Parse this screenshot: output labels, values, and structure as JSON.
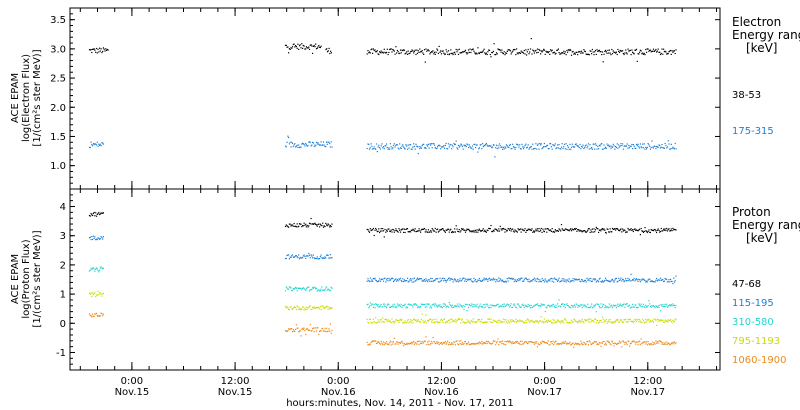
{
  "chart_data": [
    {
      "type": "scatter",
      "panel": "electron",
      "ylabel_lines": [
        "ACE EPAM",
        "log(Electron Flux)",
        "[1/(cm²s ster MeV)]"
      ],
      "ylim": [
        0.6,
        3.7
      ],
      "yticks": [
        "1.0",
        "1.5",
        "2.0",
        "2.5",
        "3.0",
        "3.5"
      ],
      "ytick_values": [
        1.0,
        1.5,
        2.0,
        2.5,
        3.0,
        3.5
      ],
      "legend_title_lines": [
        "Electron",
        "Energy ranges",
        "[keV]"
      ],
      "series": [
        {
          "name": "38-53",
          "color": "#000000",
          "segments": [
            [
              -5.0,
              -2.8,
              2.98
            ],
            [
              17.8,
              22.0,
              3.05
            ],
            [
              22.5,
              23.2,
              2.98
            ],
            [
              27.3,
              63.3,
              2.96
            ]
          ]
        },
        {
          "name": "175-315",
          "color": "#1e7fd6",
          "segments": [
            [
              -5.0,
              -3.3,
              1.37
            ],
            [
              17.8,
              23.2,
              1.37
            ],
            [
              27.3,
              63.3,
              1.34
            ]
          ]
        }
      ]
    },
    {
      "type": "scatter",
      "panel": "proton",
      "ylabel_lines": [
        "ACE EPAM",
        "log(Proton Flux)",
        "[1/(cm²s ster MeV)]"
      ],
      "ylim": [
        -1.6,
        4.6
      ],
      "yticks": [
        "-1",
        "0",
        "1",
        "2",
        "3",
        "4"
      ],
      "ytick_values": [
        -1,
        0,
        1,
        2,
        3,
        4
      ],
      "legend_title_lines": [
        "Proton",
        "Energy ranges",
        "[keV]"
      ],
      "series": [
        {
          "name": "47-68",
          "color": "#000000",
          "segments": [
            [
              -5.0,
              -3.3,
              3.76
            ],
            [
              17.8,
              23.2,
              3.38
            ],
            [
              27.3,
              63.3,
              3.2
            ]
          ]
        },
        {
          "name": "115-195",
          "color": "#1e7fd6",
          "segments": [
            [
              -5.0,
              -3.3,
              2.95
            ],
            [
              17.8,
              23.2,
              2.3
            ],
            [
              27.3,
              63.3,
              1.5
            ]
          ]
        },
        {
          "name": "310-580",
          "color": "#26d4cf",
          "segments": [
            [
              -5.0,
              -3.3,
              1.85
            ],
            [
              17.8,
              23.2,
              1.2
            ],
            [
              27.3,
              63.3,
              0.62
            ]
          ]
        },
        {
          "name": "795-1193",
          "color": "#c8dc00",
          "segments": [
            [
              -5.0,
              -3.3,
              1.0
            ],
            [
              17.8,
              23.2,
              0.55
            ],
            [
              27.3,
              63.3,
              0.1
            ]
          ]
        },
        {
          "name": "1060-1900",
          "color": "#ee8a1c",
          "segments": [
            [
              -5.0,
              -3.3,
              0.3
            ],
            [
              17.8,
              23.2,
              -0.2
            ],
            [
              27.3,
              63.3,
              -0.65
            ]
          ]
        }
      ]
    }
  ],
  "x_axis": {
    "ticks": [
      {
        "time": "0:00",
        "day": "Nov.15",
        "value": 0
      },
      {
        "time": "12:00",
        "day": "Nov.15",
        "value": 12
      },
      {
        "time": "0:00",
        "day": "Nov.16",
        "value": 24
      },
      {
        "time": "12:00",
        "day": "Nov.16",
        "value": 36
      },
      {
        "time": "0:00",
        "day": "Nov.17",
        "value": 48
      },
      {
        "time": "12:00",
        "day": "Nov.17",
        "value": 60
      }
    ],
    "xlim": [
      -7.2,
      68.4
    ],
    "label": "hours:minutes, Nov. 14, 2011 - Nov. 17, 2011"
  }
}
